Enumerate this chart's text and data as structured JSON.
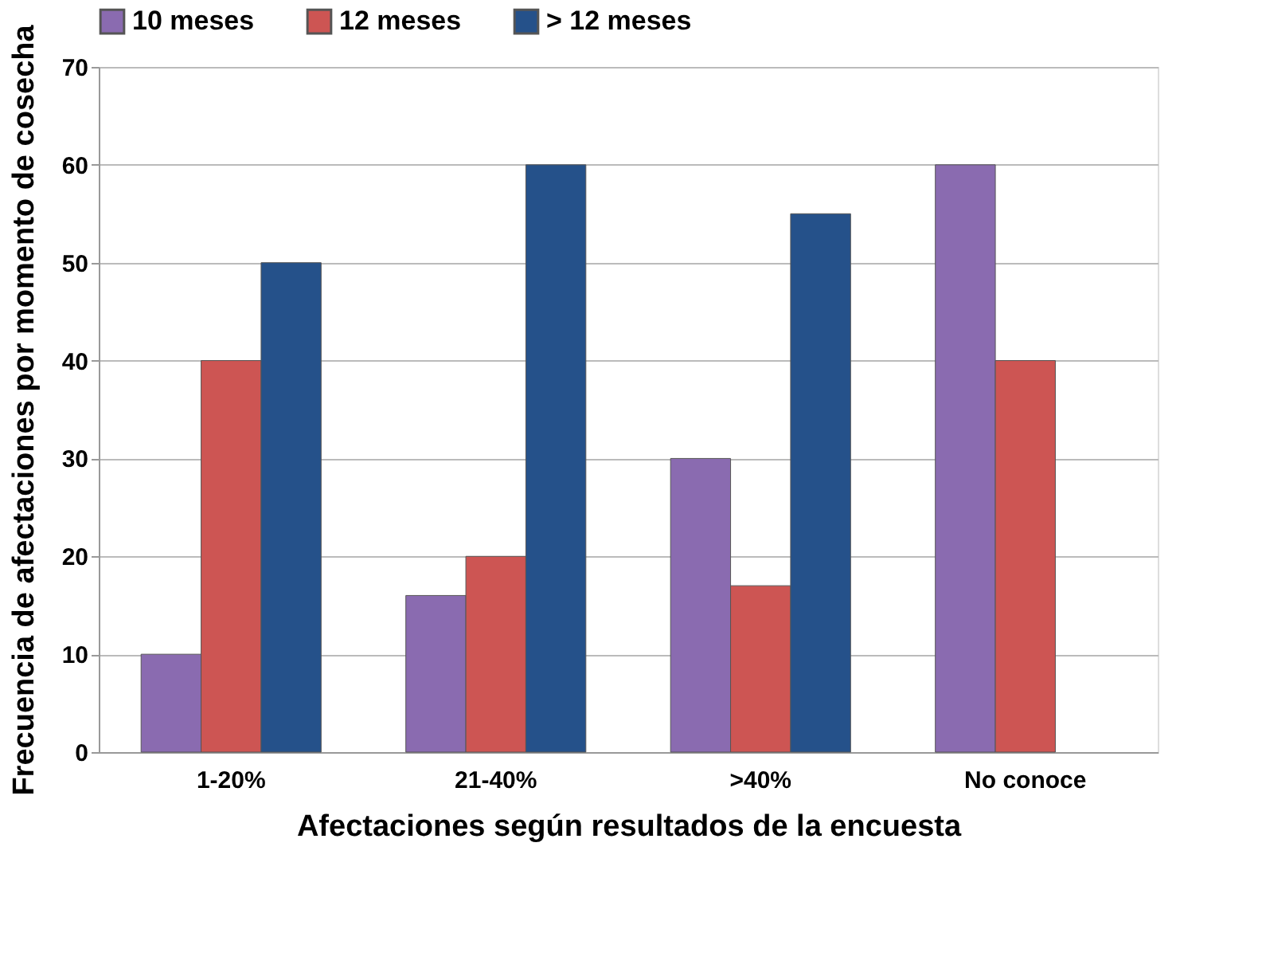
{
  "chart_data": {
    "type": "bar",
    "xlabel": "Afectaciones según resultados de la encuesta",
    "ylabel": "Frecuencia de afectaciones por momento de cosecha",
    "categories": [
      "1-20%",
      "21-40%",
      ">40%",
      "No conoce"
    ],
    "series": [
      {
        "name": "10 meses",
        "color": "#8a6bb0",
        "values": [
          10,
          16,
          30,
          60
        ]
      },
      {
        "name": "12 meses",
        "color": "#cd5553",
        "values": [
          40,
          20,
          17,
          40
        ]
      },
      {
        "name": "> 12 meses",
        "color": "#25518a",
        "values": [
          50,
          60,
          55,
          null
        ]
      }
    ],
    "ylim": [
      0,
      70
    ],
    "yticks": [
      0,
      10,
      20,
      30,
      40,
      50,
      60,
      70
    ],
    "grid": "y",
    "legend": "top"
  }
}
